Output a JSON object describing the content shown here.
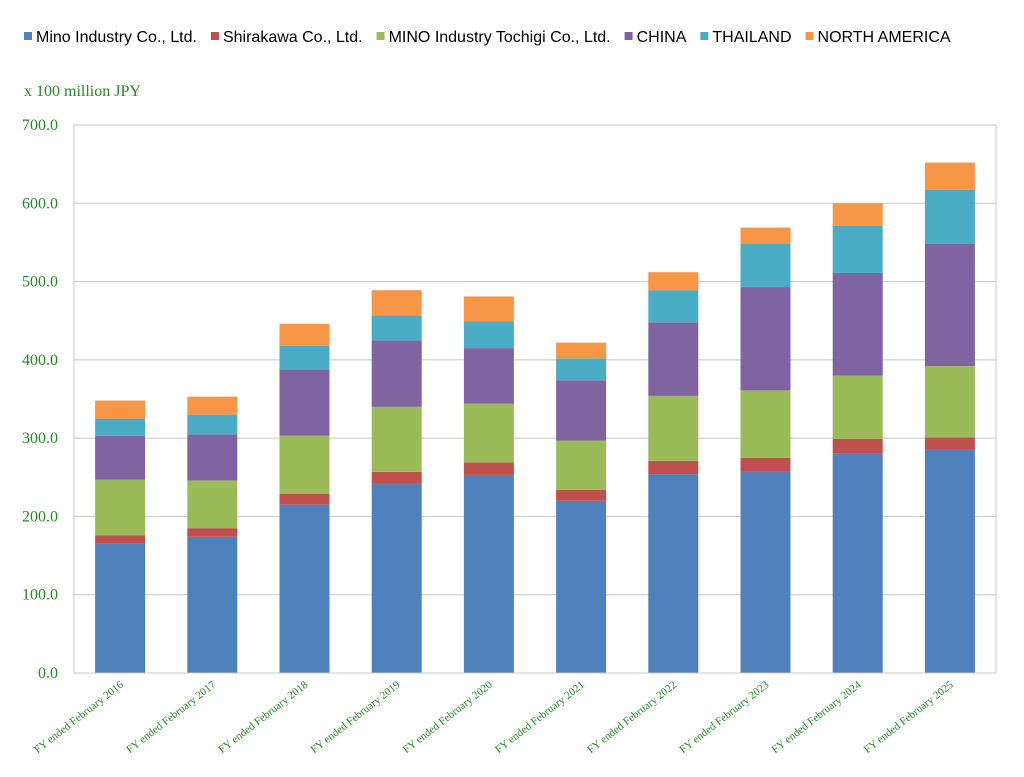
{
  "chart_data": {
    "type": "bar",
    "stacked": true,
    "title": "",
    "unit_label": "x 100 million JPY",
    "xlabel": "",
    "ylabel": "",
    "ylim": [
      0,
      700
    ],
    "yticks": [
      "0.0",
      "100.0",
      "200.0",
      "300.0",
      "400.0",
      "500.0",
      "600.0",
      "700.0"
    ],
    "grid": true,
    "legend_position": "top",
    "categories": [
      "FY ended February 2016",
      "FY ended February 2017",
      "FY ended February 2018",
      "FY ended February 2019",
      "FY ended February 2020",
      "FY ended February 2021",
      "FY ended February 2022",
      "FY ended February 2023",
      "FY ended February 2024",
      "FY ended February 2025"
    ],
    "series": [
      {
        "name": "Mino Industry Co., Ltd.",
        "color": "#4f81bd",
        "values": [
          165,
          174,
          215,
          242,
          253,
          220,
          254,
          258,
          280,
          285
        ]
      },
      {
        "name": "Shirakawa Co., Ltd.",
        "color": "#c0504d",
        "values": [
          11,
          11,
          14,
          15,
          16,
          14,
          17,
          17,
          19,
          16
        ]
      },
      {
        "name": "MINO Industry Tochigi Co., Ltd.",
        "color": "#9bbb59",
        "values": [
          71,
          61,
          74,
          83,
          75,
          63,
          83,
          86,
          81,
          91
        ]
      },
      {
        "name": "CHINA",
        "color": "#8064a2",
        "values": [
          56,
          59,
          85,
          85,
          71,
          77,
          94,
          132,
          131,
          156
        ]
      },
      {
        "name": "THAILAND",
        "color": "#4bacc6",
        "values": [
          22,
          25,
          30,
          32,
          34,
          28,
          41,
          55,
          60,
          69
        ]
      },
      {
        "name": "NORTH AMERICA",
        "color": "#f79646",
        "values": [
          23,
          23,
          28,
          32,
          32,
          20,
          23,
          21,
          29,
          35
        ]
      }
    ],
    "colors": {
      "axis_text": "#228b22",
      "grid": "#c8c8c8",
      "plot_border": "#c8c8c8"
    }
  }
}
